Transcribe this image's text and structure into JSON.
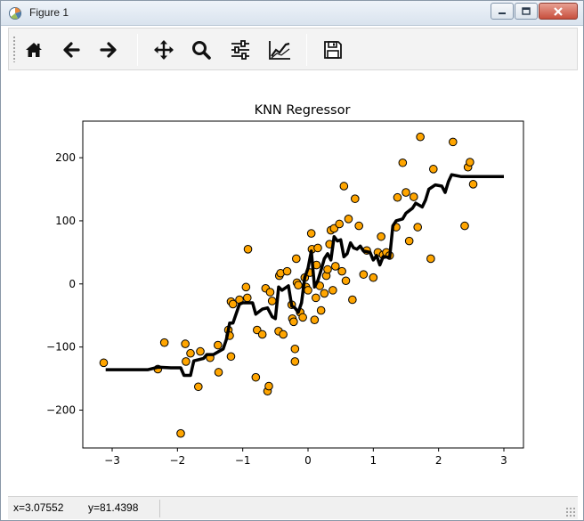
{
  "window": {
    "title": "Figure 1",
    "icons": {
      "app": "matplotlib-icon",
      "minimize": "minimize-icon",
      "maximize": "maximize-icon",
      "close": "close-icon"
    },
    "colors": {
      "titlebar": "#dde6f0",
      "close": "#c7503e"
    }
  },
  "toolbar": {
    "tools": [
      {
        "name": "home",
        "icon": "home-icon",
        "tooltip": "Home"
      },
      {
        "name": "back",
        "icon": "arrow-left-icon",
        "tooltip": "Back"
      },
      {
        "name": "forward",
        "icon": "arrow-right-icon",
        "tooltip": "Forward"
      },
      {
        "name": "pan",
        "icon": "move-icon",
        "tooltip": "Pan"
      },
      {
        "name": "zoom",
        "icon": "magnifier-icon",
        "tooltip": "Zoom"
      },
      {
        "name": "subplots",
        "icon": "sliders-icon",
        "tooltip": "Subplots"
      },
      {
        "name": "customize",
        "icon": "line-chart-icon",
        "tooltip": "Customize"
      },
      {
        "name": "save",
        "icon": "floppy-disk-icon",
        "tooltip": "Save"
      }
    ]
  },
  "status": {
    "x": "x=3.07552",
    "y": "y=81.4398"
  },
  "chart_data": {
    "type": "scatter",
    "title": "KNN Regressor",
    "xlabel": "",
    "ylabel": "",
    "xlim": [
      -3.45,
      3.3
    ],
    "ylim": [
      -260,
      258
    ],
    "xticks": [
      -3,
      -2,
      -1,
      0,
      1,
      2,
      3
    ],
    "yticks": [
      -200,
      -100,
      0,
      100,
      200
    ],
    "grid": false,
    "colors": {
      "points": "#ffa500",
      "edge": "#000000",
      "line": "#000000"
    },
    "points": [
      [
        -3.13,
        -125
      ],
      [
        -2.3,
        -135
      ],
      [
        -2.2,
        -93
      ],
      [
        -1.95,
        -237
      ],
      [
        -1.88,
        -95
      ],
      [
        -1.87,
        -123
      ],
      [
        -1.8,
        -110
      ],
      [
        -1.68,
        -163
      ],
      [
        -1.65,
        -107
      ],
      [
        -1.5,
        -117
      ],
      [
        -1.38,
        -97
      ],
      [
        -1.37,
        -140
      ],
      [
        -1.22,
        -73
      ],
      [
        -1.2,
        -82
      ],
      [
        -1.18,
        -115
      ],
      [
        -1.18,
        -28
      ],
      [
        -1.15,
        -32
      ],
      [
        -1.05,
        -25
      ],
      [
        -0.95,
        -5
      ],
      [
        -0.93,
        -22
      ],
      [
        -0.92,
        55
      ],
      [
        -0.8,
        -148
      ],
      [
        -0.78,
        -73
      ],
      [
        -0.7,
        -80
      ],
      [
        -0.65,
        -7
      ],
      [
        -0.62,
        -170
      ],
      [
        -0.6,
        -162
      ],
      [
        -0.58,
        -13
      ],
      [
        -0.55,
        -27
      ],
      [
        -0.45,
        -75
      ],
      [
        -0.44,
        13
      ],
      [
        -0.42,
        17
      ],
      [
        -0.38,
        -80
      ],
      [
        -0.32,
        20
      ],
      [
        -0.25,
        -33
      ],
      [
        -0.24,
        -55
      ],
      [
        -0.22,
        -60
      ],
      [
        -0.2,
        -103
      ],
      [
        -0.2,
        -123
      ],
      [
        -0.18,
        40
      ],
      [
        -0.17,
        2
      ],
      [
        -0.15,
        -2
      ],
      [
        -0.12,
        -45
      ],
      [
        -0.08,
        -53
      ],
      [
        -0.05,
        10
      ],
      [
        -0.03,
        -5
      ],
      [
        0.0,
        -10
      ],
      [
        0.03,
        18
      ],
      [
        0.05,
        80
      ],
      [
        0.06,
        55
      ],
      [
        0.1,
        -57
      ],
      [
        0.12,
        -22
      ],
      [
        0.13,
        30
      ],
      [
        0.15,
        57
      ],
      [
        0.18,
        -3
      ],
      [
        0.2,
        -42
      ],
      [
        0.25,
        -15
      ],
      [
        0.28,
        13
      ],
      [
        0.3,
        23
      ],
      [
        0.33,
        63
      ],
      [
        0.35,
        85
      ],
      [
        0.38,
        -10
      ],
      [
        0.4,
        88
      ],
      [
        0.42,
        28
      ],
      [
        0.48,
        95
      ],
      [
        0.52,
        20
      ],
      [
        0.55,
        155
      ],
      [
        0.58,
        5
      ],
      [
        0.62,
        103
      ],
      [
        0.68,
        -25
      ],
      [
        0.72,
        135
      ],
      [
        0.78,
        92
      ],
      [
        0.85,
        15
      ],
      [
        0.9,
        53
      ],
      [
        1.0,
        10
      ],
      [
        1.07,
        50
      ],
      [
        1.12,
        75
      ],
      [
        1.15,
        46
      ],
      [
        1.2,
        50
      ],
      [
        1.25,
        45
      ],
      [
        1.35,
        90
      ],
      [
        1.37,
        137
      ],
      [
        1.45,
        192
      ],
      [
        1.5,
        145
      ],
      [
        1.55,
        68
      ],
      [
        1.62,
        138
      ],
      [
        1.68,
        90
      ],
      [
        1.72,
        233
      ],
      [
        1.88,
        40
      ],
      [
        1.92,
        182
      ],
      [
        2.22,
        225
      ],
      [
        2.4,
        92
      ],
      [
        2.45,
        185
      ],
      [
        2.48,
        193
      ],
      [
        2.53,
        158
      ]
    ],
    "series": [
      {
        "x": [
          -3.1,
          -2.45,
          -2.3,
          -2.1,
          -1.95,
          -1.9,
          -1.8,
          -1.75,
          -1.6,
          -1.55,
          -1.45,
          -1.3,
          -1.25,
          -1.2,
          -1.15,
          -1.05,
          -1.0,
          -0.85,
          -0.8,
          -0.7,
          -0.62,
          -0.55,
          -0.5,
          -0.45,
          -0.4,
          -0.3,
          -0.25,
          -0.2,
          -0.15,
          -0.1,
          -0.05,
          0.0,
          0.05,
          0.1,
          0.15,
          0.2,
          0.25,
          0.3,
          0.35,
          0.4,
          0.45,
          0.5,
          0.55,
          0.6,
          0.65,
          0.7,
          0.75,
          0.8,
          0.85,
          0.95,
          1.0,
          1.05,
          1.1,
          1.15,
          1.25,
          1.3,
          1.35,
          1.45,
          1.5,
          1.6,
          1.65,
          1.75,
          1.8,
          1.85,
          1.95,
          2.05,
          2.1,
          2.15,
          2.2,
          2.35,
          2.5,
          3.0
        ],
        "y": [
          -136,
          -136,
          -132,
          -133,
          -133,
          -145,
          -145,
          -122,
          -118,
          -112,
          -112,
          -103,
          -88,
          -62,
          -62,
          -32,
          -30,
          -30,
          -48,
          -40,
          -38,
          -52,
          -55,
          -5,
          -10,
          -3,
          -35,
          -38,
          -45,
          -30,
          10,
          25,
          52,
          -5,
          5,
          22,
          40,
          48,
          38,
          75,
          68,
          70,
          43,
          48,
          65,
          57,
          55,
          60,
          52,
          50,
          38,
          45,
          30,
          43,
          42,
          92,
          100,
          103,
          112,
          120,
          128,
          122,
          133,
          150,
          157,
          155,
          145,
          162,
          173,
          170,
          170,
          170
        ]
      }
    ]
  }
}
